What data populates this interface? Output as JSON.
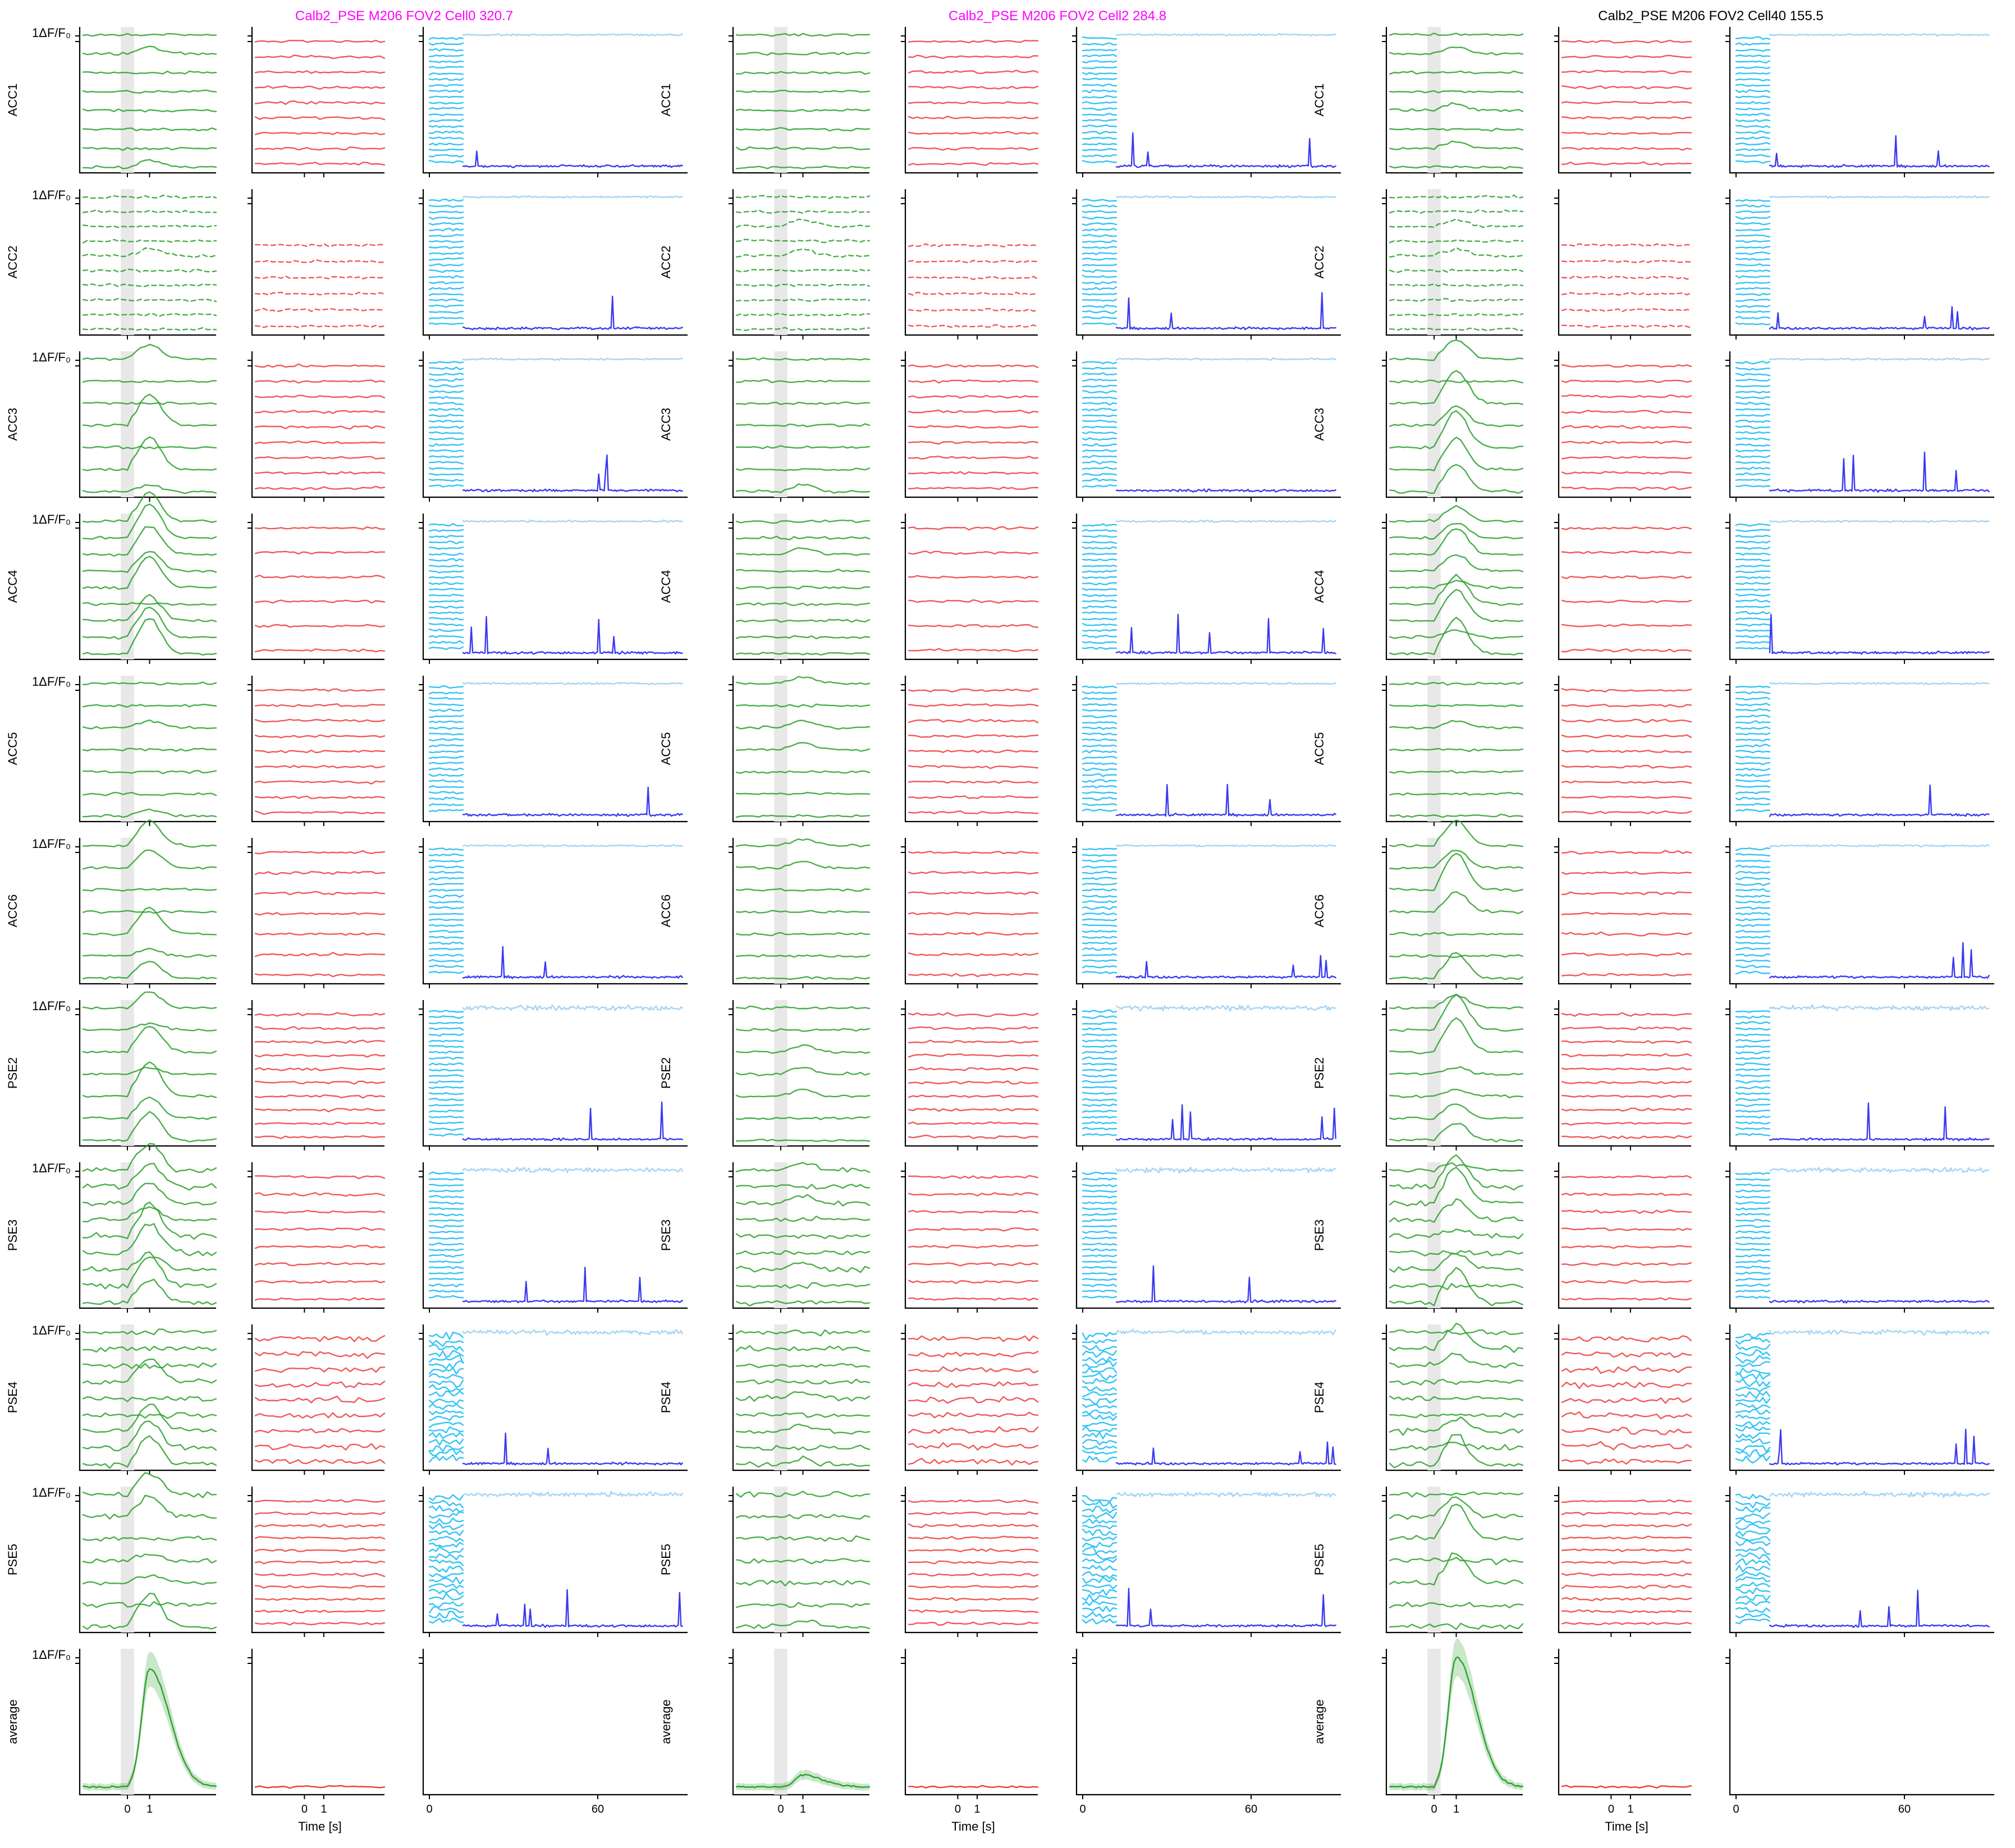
{
  "chart_data": {
    "type": "line",
    "figure_columns": [
      {
        "title": "Calb2_PSE M206 FOV2 Cell0 320.7",
        "title_color": "#ff00ff"
      },
      {
        "title": "Calb2_PSE M206 FOV2 Cell2 284.8",
        "title_color": "#ff00ff"
      },
      {
        "title": "Calb2_PSE M206 FOV2 Cell40 155.5",
        "title_color": "#000000"
      }
    ],
    "row_labels": [
      "ACC1",
      "ACC2",
      "ACC3",
      "ACC4",
      "ACC5",
      "ACC6",
      "PSE2",
      "PSE3",
      "PSE4",
      "PSE5",
      "average"
    ],
    "scale_label": "1ΔF/F₀",
    "xlabel": "Time [s]",
    "xticks_stim": [
      "0",
      "1"
    ],
    "xticks_session": [
      "0",
      "60"
    ],
    "panel_types": [
      "stimulus-aligned (green)",
      "baseline-aligned (red)",
      "full session (blue)"
    ],
    "x_range_stim": [
      -2,
      4
    ],
    "x_range_session": [
      -1,
      92
    ],
    "stimulus_window": [
      -0.3,
      0.3
    ],
    "colors": {
      "stim_trace": "#2ca02c",
      "baseline_trace": "#ee3b3b",
      "session_trials": "#33c3f5",
      "session_top": "#a6d5f5",
      "session_bottom": "#3a3af0",
      "stim_window": "#e8e8e8"
    },
    "trials_per_row": {
      "stim": [
        8,
        10,
        7,
        9,
        7,
        7,
        7,
        9,
        9,
        7
      ],
      "baseline": [
        9,
        6,
        9,
        6,
        9,
        7,
        10,
        8,
        9,
        11
      ]
    },
    "average_peak": [
      1.0,
      0.1,
      1.1
    ]
  }
}
